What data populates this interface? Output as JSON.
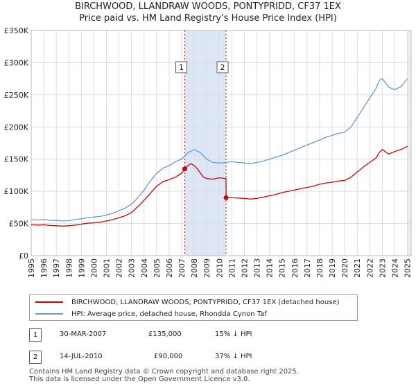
{
  "chart_data": {
    "type": "line",
    "title": "BIRCHWOOD, LLANDRAW WOODS, PONTYPRIDD, CF37 1EX",
    "subtitle": "Price paid vs. HM Land Registry's House Price Index (HPI)",
    "xlabel": "",
    "ylabel": "",
    "xlim": [
      1995,
      2025.3
    ],
    "ylim": [
      0,
      350000
    ],
    "y_ticks": [
      0,
      50000,
      100000,
      150000,
      200000,
      250000,
      300000,
      350000
    ],
    "y_tick_labels": [
      "£0",
      "£50K",
      "£100K",
      "£150K",
      "£200K",
      "£250K",
      "£300K",
      "£350K"
    ],
    "x_ticks": [
      1995,
      1996,
      1997,
      1998,
      1999,
      2000,
      2001,
      2002,
      2003,
      2004,
      2005,
      2006,
      2007,
      2008,
      2009,
      2010,
      2011,
      2012,
      2013,
      2014,
      2015,
      2016,
      2017,
      2018,
      2019,
      2020,
      2021,
      2022,
      2023,
      2024,
      2025
    ],
    "x_tick_labels": [
      "1995",
      "1996",
      "1997",
      "1998",
      "1999",
      "2000",
      "2001",
      "2002",
      "2003",
      "2004",
      "2005",
      "2006",
      "2007",
      "2008",
      "2009",
      "2010",
      "2011",
      "2012",
      "2013",
      "2014",
      "2015",
      "2016",
      "2017",
      "2018",
      "2019",
      "2020",
      "2021",
      "2022",
      "2023",
      "2024",
      "2025"
    ],
    "grid": true,
    "shaded_span": [
      2007.25,
      2010.54
    ],
    "series": [
      {
        "name": "BIRCHWOOD, LLANDRAW WOODS, PONTYPRIDD, CF37 1EX (detached house)",
        "color": "#cc0000",
        "x": [
          1995,
          1995.5,
          1996,
          1996.5,
          1997,
          1997.5,
          1998,
          1998.5,
          1999,
          1999.5,
          2000,
          2000.5,
          2001,
          2001.5,
          2002,
          2002.5,
          2003,
          2003.5,
          2004,
          2004.5,
          2005,
          2005.5,
          2006,
          2006.5,
          2007,
          2007.25,
          2007.5,
          2007.75,
          2008,
          2008.25,
          2008.5,
          2008.75,
          2009,
          2009.5,
          2010,
          2010.5,
          2010.53,
          2010.55,
          2011,
          2011.5,
          2012,
          2012.5,
          2013,
          2013.5,
          2014,
          2014.5,
          2015,
          2015.5,
          2016,
          2016.5,
          2017,
          2017.5,
          2018,
          2018.5,
          2019,
          2019.5,
          2020,
          2020.5,
          2021,
          2021.5,
          2022,
          2022.5,
          2022.75,
          2023,
          2023.5,
          2024,
          2024.5,
          2025
        ],
        "values": [
          48000,
          47500,
          48000,
          47000,
          46500,
          46000,
          46500,
          47500,
          49000,
          50500,
          51000,
          52000,
          54000,
          56000,
          59000,
          62000,
          67000,
          76000,
          86000,
          97000,
          108000,
          115000,
          118000,
          122000,
          128000,
          135000,
          140000,
          143000,
          140000,
          135000,
          128000,
          122000,
          120000,
          119000,
          121000,
          120000,
          120000,
          90000,
          90000,
          89500,
          89000,
          88000,
          89000,
          91000,
          93000,
          95000,
          98000,
          100000,
          102000,
          104000,
          106000,
          108000,
          111000,
          113000,
          114000,
          116000,
          117000,
          122000,
          130000,
          138000,
          145000,
          152000,
          160000,
          165000,
          158000,
          162000,
          165000,
          170000
        ]
      },
      {
        "name": "HPI: Average price, detached house, Rhondda Cynon Taf",
        "color": "#6699cc",
        "x": [
          1995,
          1995.5,
          1996,
          1996.5,
          1997,
          1997.5,
          1998,
          1998.5,
          1999,
          1999.5,
          2000,
          2000.5,
          2001,
          2001.5,
          2002,
          2002.5,
          2003,
          2003.5,
          2004,
          2004.5,
          2005,
          2005.5,
          2006,
          2006.5,
          2007,
          2007.5,
          2008,
          2008.5,
          2009,
          2009.5,
          2010,
          2010.5,
          2011,
          2011.5,
          2012,
          2012.5,
          2013,
          2013.5,
          2014,
          2014.5,
          2015,
          2015.5,
          2016,
          2016.5,
          2017,
          2017.5,
          2018,
          2018.5,
          2019,
          2019.5,
          2020,
          2020.5,
          2021,
          2021.5,
          2022,
          2022.5,
          2022.75,
          2023,
          2023.5,
          2024,
          2024.5,
          2025
        ],
        "values": [
          56000,
          55500,
          56000,
          55000,
          54500,
          54000,
          54500,
          56000,
          57500,
          59000,
          60000,
          61000,
          63000,
          66000,
          70000,
          74000,
          80000,
          90000,
          102000,
          116000,
          128000,
          136000,
          140000,
          146000,
          150000,
          160000,
          165000,
          160000,
          150000,
          145000,
          144000,
          145000,
          146000,
          145000,
          144000,
          143000,
          145000,
          147000,
          150000,
          153000,
          156000,
          160000,
          164000,
          168000,
          172000,
          176000,
          180000,
          184000,
          187000,
          190000,
          192000,
          200000,
          215000,
          230000,
          245000,
          260000,
          272000,
          275000,
          262000,
          258000,
          263000,
          275000
        ]
      }
    ],
    "annotations": [
      {
        "label": "1",
        "x": 2007.25,
        "price": 135000
      },
      {
        "label": "2",
        "x": 2010.54,
        "price": 90000
      }
    ]
  },
  "legend": {
    "red_label": "BIRCHWOOD, LLANDRAW WOODS, PONTYPRIDD, CF37 1EX (detached house)",
    "blue_label": "HPI: Average price, detached house, Rhondda Cynon Taf"
  },
  "transactions": [
    {
      "num": "1",
      "date": "30-MAR-2007",
      "price": "£135,000",
      "hpi": "15% ↓ HPI"
    },
    {
      "num": "2",
      "date": "14-JUL-2010",
      "price": "£90,000",
      "hpi": "37% ↓ HPI"
    }
  ],
  "footer": {
    "line1": "Contains HM Land Registry data © Crown copyright and database right 2025.",
    "line2": "This data is licensed under the Open Government Licence v3.0."
  },
  "colors": {
    "red": "#cc0000",
    "blue": "#6699cc",
    "shade": "#dde6f7",
    "grid": "#dddddd"
  }
}
